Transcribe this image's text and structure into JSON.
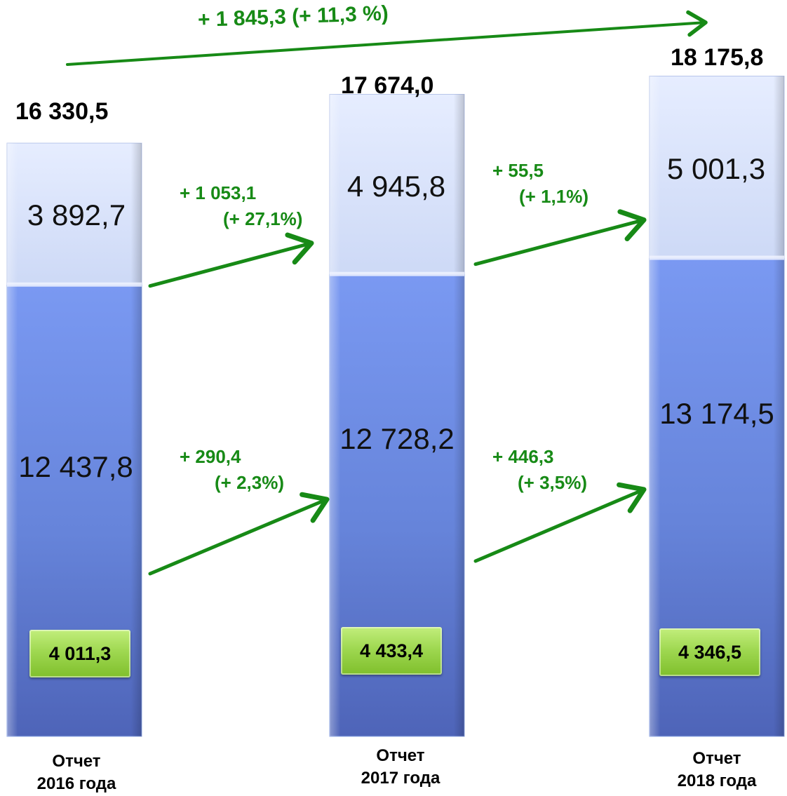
{
  "chart_data": {
    "type": "bar",
    "stacked": true,
    "categories": [
      {
        "line1": "Отчет",
        "line2": "2016 года"
      },
      {
        "line1": "Отчет",
        "line2": "2017 года"
      },
      {
        "line1": "Отчет",
        "line2": "2018 года"
      }
    ],
    "totals": [
      "16 330,5",
      "17 674,0",
      "18 175,8"
    ],
    "series": [
      {
        "values": [
          12437.8,
          12728.2,
          13174.5
        ],
        "labels": [
          "12 437,8",
          "12 728,2",
          "13 174,5"
        ],
        "color": "#5a78d0"
      },
      {
        "values": [
          3892.7,
          4945.8,
          5001.3
        ],
        "labels": [
          "3 892,7",
          "4 945,8",
          "5 001,3"
        ],
        "color": "#d6e0fa"
      }
    ],
    "sub_values": [
      "4 011,3",
      "4 433,4",
      "4 346,5"
    ],
    "sub_color": "#9fd851",
    "changes": {
      "upper": [
        {
          "abs": "+ 1 053,1",
          "pct": "(+ 27,1%)"
        },
        {
          "abs": "+ 55,5",
          "pct": "(+ 1,1%)"
        }
      ],
      "lower": [
        {
          "abs": "+ 290,4",
          "pct": "(+ 2,3%)"
        },
        {
          "abs": "+ 446,3",
          "pct": "(+ 3,5%)"
        }
      ],
      "total": "+ 1 845,3 (+ 11,3 %)"
    },
    "arrow_color": "#178a16",
    "grid": false,
    "legend": "none"
  }
}
